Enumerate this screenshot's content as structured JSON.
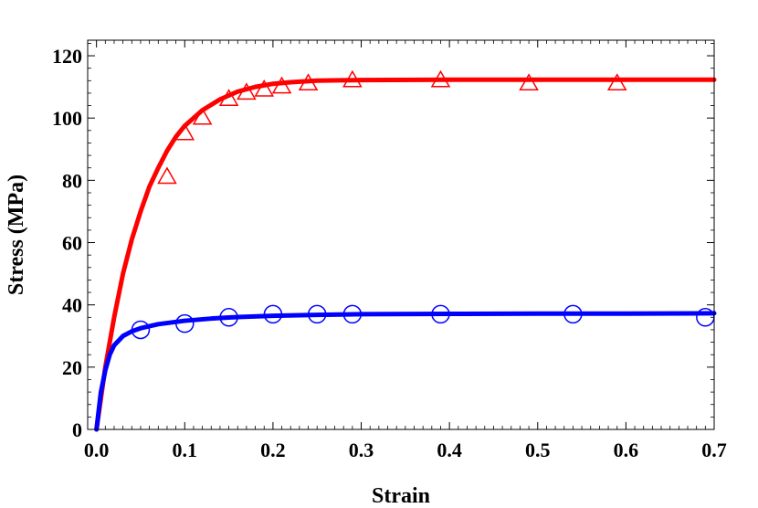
{
  "chart_data": {
    "type": "scatter",
    "title": "",
    "xlabel": "Strain",
    "ylabel": "Stress (MPa)",
    "xlim": [
      -0.01,
      0.7
    ],
    "ylim": [
      0,
      125
    ],
    "x_ticks": [
      {
        "value": 0.0,
        "label": "0.0"
      },
      {
        "value": 0.1,
        "label": "0.1"
      },
      {
        "value": 0.2,
        "label": "0.2"
      },
      {
        "value": 0.3,
        "label": "0.3"
      },
      {
        "value": 0.4,
        "label": "0.4"
      },
      {
        "value": 0.5,
        "label": "0.5"
      },
      {
        "value": 0.6,
        "label": "0.6"
      },
      {
        "value": 0.7,
        "label": "0.7"
      }
    ],
    "y_ticks": [
      {
        "value": 0,
        "label": "0"
      },
      {
        "value": 20,
        "label": "20"
      },
      {
        "value": 40,
        "label": "40"
      },
      {
        "value": 60,
        "label": "60"
      },
      {
        "value": 80,
        "label": "80"
      },
      {
        "value": 100,
        "label": "100"
      },
      {
        "value": 120,
        "label": "120"
      }
    ],
    "grid": false,
    "legend": "none",
    "series": [
      {
        "color": "#ff0000",
        "marker": "triangle",
        "points": [
          {
            "x": 0.08,
            "y": 81
          },
          {
            "x": 0.1,
            "y": 95
          },
          {
            "x": 0.12,
            "y": 100
          },
          {
            "x": 0.15,
            "y": 106
          },
          {
            "x": 0.17,
            "y": 108
          },
          {
            "x": 0.19,
            "y": 109
          },
          {
            "x": 0.21,
            "y": 110
          },
          {
            "x": 0.24,
            "y": 111
          },
          {
            "x": 0.29,
            "y": 112
          },
          {
            "x": 0.39,
            "y": 112
          },
          {
            "x": 0.49,
            "y": 111
          },
          {
            "x": 0.59,
            "y": 111
          }
        ],
        "curve": [
          {
            "x": 0.0,
            "y": 0
          },
          {
            "x": 0.01,
            "y": 20
          },
          {
            "x": 0.02,
            "y": 36
          },
          {
            "x": 0.03,
            "y": 50
          },
          {
            "x": 0.04,
            "y": 61
          },
          {
            "x": 0.05,
            "y": 70
          },
          {
            "x": 0.06,
            "y": 78
          },
          {
            "x": 0.07,
            "y": 84
          },
          {
            "x": 0.08,
            "y": 89.5
          },
          {
            "x": 0.09,
            "y": 94
          },
          {
            "x": 0.1,
            "y": 97.5
          },
          {
            "x": 0.12,
            "y": 102.5
          },
          {
            "x": 0.14,
            "y": 106
          },
          {
            "x": 0.16,
            "y": 108.5
          },
          {
            "x": 0.18,
            "y": 110
          },
          {
            "x": 0.2,
            "y": 111
          },
          {
            "x": 0.22,
            "y": 111.5
          },
          {
            "x": 0.25,
            "y": 112
          },
          {
            "x": 0.3,
            "y": 112.2
          },
          {
            "x": 0.4,
            "y": 112.3
          },
          {
            "x": 0.5,
            "y": 112.3
          },
          {
            "x": 0.6,
            "y": 112.3
          },
          {
            "x": 0.7,
            "y": 112.3
          }
        ]
      },
      {
        "color": "#0000ff",
        "marker": "circle",
        "points": [
          {
            "x": 0.05,
            "y": 32
          },
          {
            "x": 0.1,
            "y": 34
          },
          {
            "x": 0.15,
            "y": 36
          },
          {
            "x": 0.2,
            "y": 37
          },
          {
            "x": 0.25,
            "y": 37
          },
          {
            "x": 0.29,
            "y": 37
          },
          {
            "x": 0.39,
            "y": 37
          },
          {
            "x": 0.54,
            "y": 37
          },
          {
            "x": 0.69,
            "y": 36
          }
        ],
        "curve": [
          {
            "x": 0.0,
            "y": 0
          },
          {
            "x": 0.005,
            "y": 12
          },
          {
            "x": 0.01,
            "y": 19
          },
          {
            "x": 0.015,
            "y": 24
          },
          {
            "x": 0.02,
            "y": 27
          },
          {
            "x": 0.03,
            "y": 30
          },
          {
            "x": 0.04,
            "y": 31.5
          },
          {
            "x": 0.05,
            "y": 32.5
          },
          {
            "x": 0.07,
            "y": 33.8
          },
          {
            "x": 0.1,
            "y": 34.9
          },
          {
            "x": 0.13,
            "y": 35.6
          },
          {
            "x": 0.16,
            "y": 36.1
          },
          {
            "x": 0.2,
            "y": 36.5
          },
          {
            "x": 0.25,
            "y": 36.8
          },
          {
            "x": 0.3,
            "y": 37
          },
          {
            "x": 0.4,
            "y": 37.1
          },
          {
            "x": 0.5,
            "y": 37.2
          },
          {
            "x": 0.6,
            "y": 37.2
          },
          {
            "x": 0.7,
            "y": 37.3
          }
        ]
      }
    ]
  }
}
